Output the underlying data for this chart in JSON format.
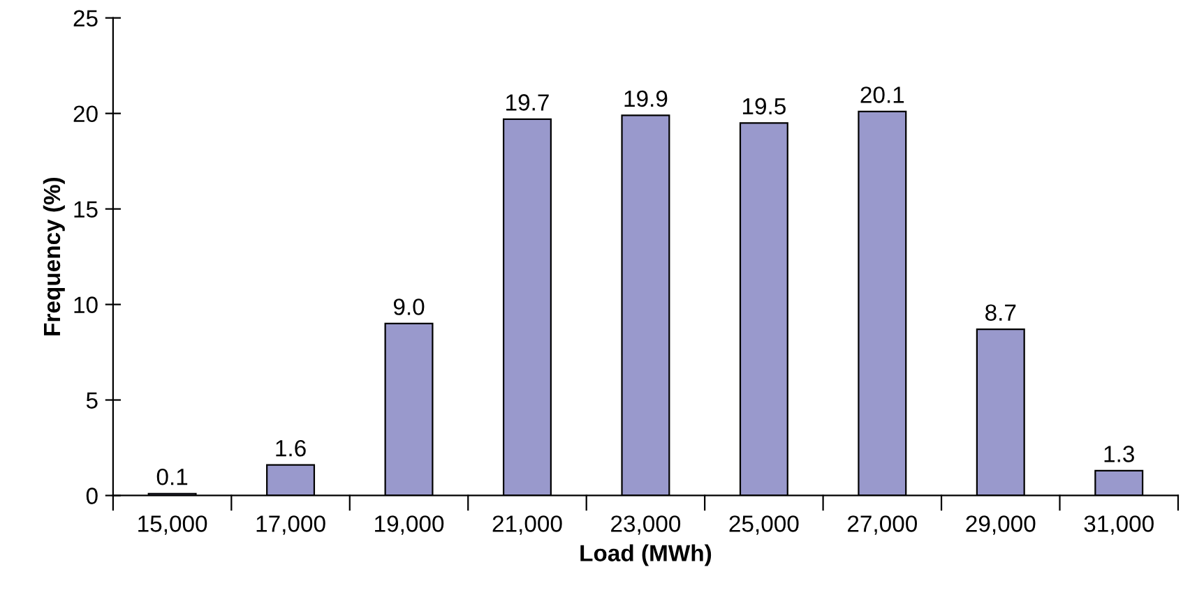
{
  "chart_data": {
    "type": "bar",
    "xlabel": "Load (MWh)",
    "ylabel": "Frequency (%)",
    "categories": [
      "15,000",
      "17,000",
      "19,000",
      "21,000",
      "23,000",
      "25,000",
      "27,000",
      "29,000",
      "31,000"
    ],
    "values": [
      0.1,
      1.6,
      9.0,
      19.7,
      19.9,
      19.5,
      20.1,
      8.7,
      1.3
    ],
    "value_labels": [
      "0.1",
      "1.6",
      "9.0",
      "19.7",
      "19.9",
      "19.5",
      "20.1",
      "8.7",
      "1.3"
    ],
    "color": "#9999cc",
    "ylim": [
      0,
      25
    ],
    "yticks": [
      0,
      5,
      10,
      15,
      20,
      25
    ],
    "grid": false,
    "legend": false
  }
}
